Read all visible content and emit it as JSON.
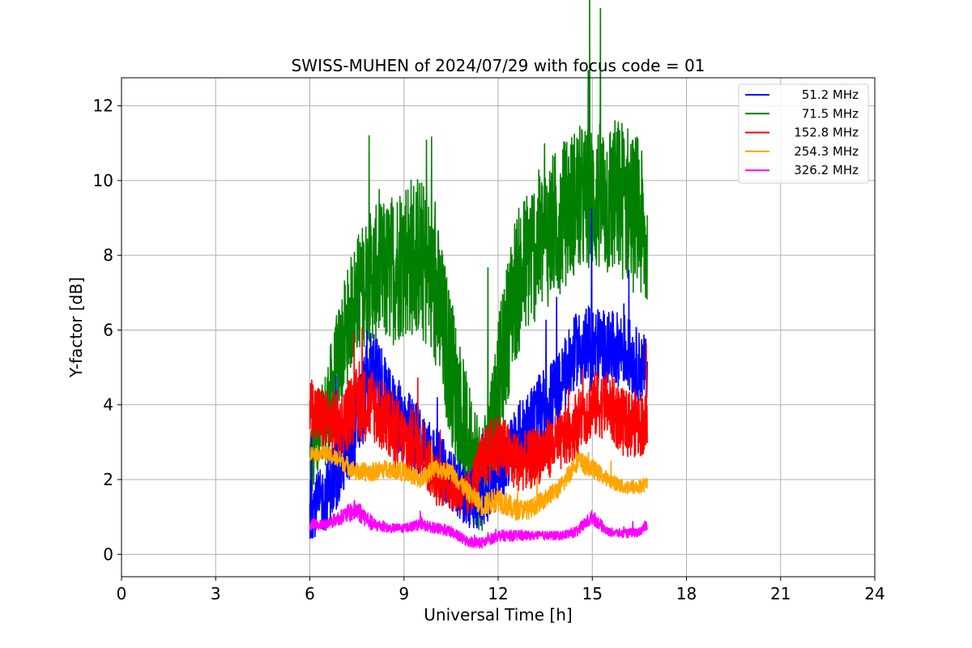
{
  "chart_data": {
    "type": "line",
    "title": "SWISS-MUHEN of 2024/07/29 with focus code = 01",
    "xlabel": "Universal Time [h]",
    "ylabel": "Y-factor [dB]",
    "xlim": [
      0,
      24
    ],
    "ylim": [
      -0.6,
      12.75
    ],
    "xticks": [
      0,
      3,
      6,
      9,
      12,
      15,
      18,
      21,
      24
    ],
    "yticks": [
      0,
      2,
      4,
      6,
      8,
      10,
      12
    ],
    "grid": true,
    "legend_position": "top-right",
    "x": [
      6.0,
      6.5,
      7.0,
      7.5,
      8.0,
      8.5,
      9.0,
      9.5,
      10.0,
      10.5,
      11.0,
      11.5,
      12.0,
      12.5,
      13.0,
      13.5,
      14.0,
      14.5,
      15.0,
      15.5,
      16.0,
      16.5,
      16.75
    ],
    "series": [
      {
        "name": "51.2 MHz",
        "color": "#0000ff",
        "values": [
          1.2,
          1.5,
          2.5,
          3.5,
          5.0,
          4.0,
          3.5,
          3.0,
          2.5,
          2.0,
          1.5,
          1.5,
          2.0,
          3.0,
          3.5,
          4.0,
          4.5,
          5.5,
          5.5,
          5.5,
          5.5,
          5.0,
          5.0
        ],
        "noise": [
          0.8,
          0.9,
          1.1,
          1.2,
          1.2,
          1.0,
          1.0,
          1.0,
          0.9,
          0.8,
          0.8,
          0.8,
          0.8,
          0.9,
          1.0,
          1.0,
          1.0,
          1.0,
          1.2,
          1.0,
          1.0,
          1.0,
          0.8
        ]
      },
      {
        "name": "71.5 MHz",
        "color": "#008000",
        "values": [
          2.5,
          3.5,
          5.5,
          7.0,
          7.5,
          7.5,
          8.0,
          8.0,
          7.0,
          5.0,
          3.0,
          2.0,
          4.5,
          7.0,
          8.0,
          8.5,
          9.0,
          9.5,
          9.5,
          9.5,
          9.5,
          9.0,
          8.0
        ],
        "noise": [
          1.2,
          1.5,
          1.5,
          1.6,
          1.8,
          2.0,
          2.2,
          2.2,
          2.2,
          2.0,
          1.8,
          1.6,
          1.8,
          2.0,
          2.0,
          2.0,
          2.0,
          2.0,
          2.0,
          2.2,
          2.2,
          2.2,
          1.8
        ]
      },
      {
        "name": "152.8 MHz",
        "color": "#ff0000",
        "values": [
          4.0,
          3.5,
          3.5,
          4.0,
          4.0,
          3.5,
          3.0,
          3.0,
          2.0,
          1.8,
          1.5,
          2.5,
          3.0,
          2.5,
          2.5,
          2.8,
          3.0,
          3.5,
          4.0,
          4.0,
          3.5,
          3.5,
          3.5
        ],
        "noise": [
          0.8,
          0.9,
          0.9,
          1.0,
          1.0,
          1.0,
          1.0,
          0.9,
          0.7,
          0.6,
          0.6,
          0.8,
          0.9,
          0.8,
          0.8,
          0.8,
          0.8,
          0.9,
          0.9,
          0.9,
          0.9,
          0.9,
          0.8
        ]
      },
      {
        "name": "254.3 MHz",
        "color": "#ffa500",
        "values": [
          2.7,
          2.7,
          2.5,
          2.2,
          2.2,
          2.3,
          2.2,
          2.0,
          2.3,
          2.2,
          1.7,
          1.3,
          1.5,
          1.2,
          1.2,
          1.5,
          1.8,
          2.5,
          2.3,
          2.0,
          1.8,
          1.8,
          1.9
        ],
        "noise": [
          0.2,
          0.2,
          0.25,
          0.25,
          0.25,
          0.25,
          0.25,
          0.25,
          0.25,
          0.25,
          0.25,
          0.3,
          0.35,
          0.3,
          0.25,
          0.25,
          0.25,
          0.3,
          0.25,
          0.2,
          0.2,
          0.2,
          0.2
        ]
      },
      {
        "name": "326.2 MHz",
        "color": "#ff00ff",
        "values": [
          0.8,
          0.8,
          1.0,
          1.2,
          0.8,
          0.7,
          0.7,
          0.8,
          0.7,
          0.6,
          0.35,
          0.3,
          0.5,
          0.5,
          0.5,
          0.5,
          0.5,
          0.6,
          1.0,
          0.6,
          0.55,
          0.6,
          0.8
        ],
        "noise": [
          0.15,
          0.15,
          0.2,
          0.3,
          0.2,
          0.12,
          0.12,
          0.15,
          0.15,
          0.15,
          0.15,
          0.15,
          0.15,
          0.15,
          0.12,
          0.12,
          0.12,
          0.15,
          0.2,
          0.12,
          0.12,
          0.12,
          0.15
        ]
      }
    ]
  }
}
